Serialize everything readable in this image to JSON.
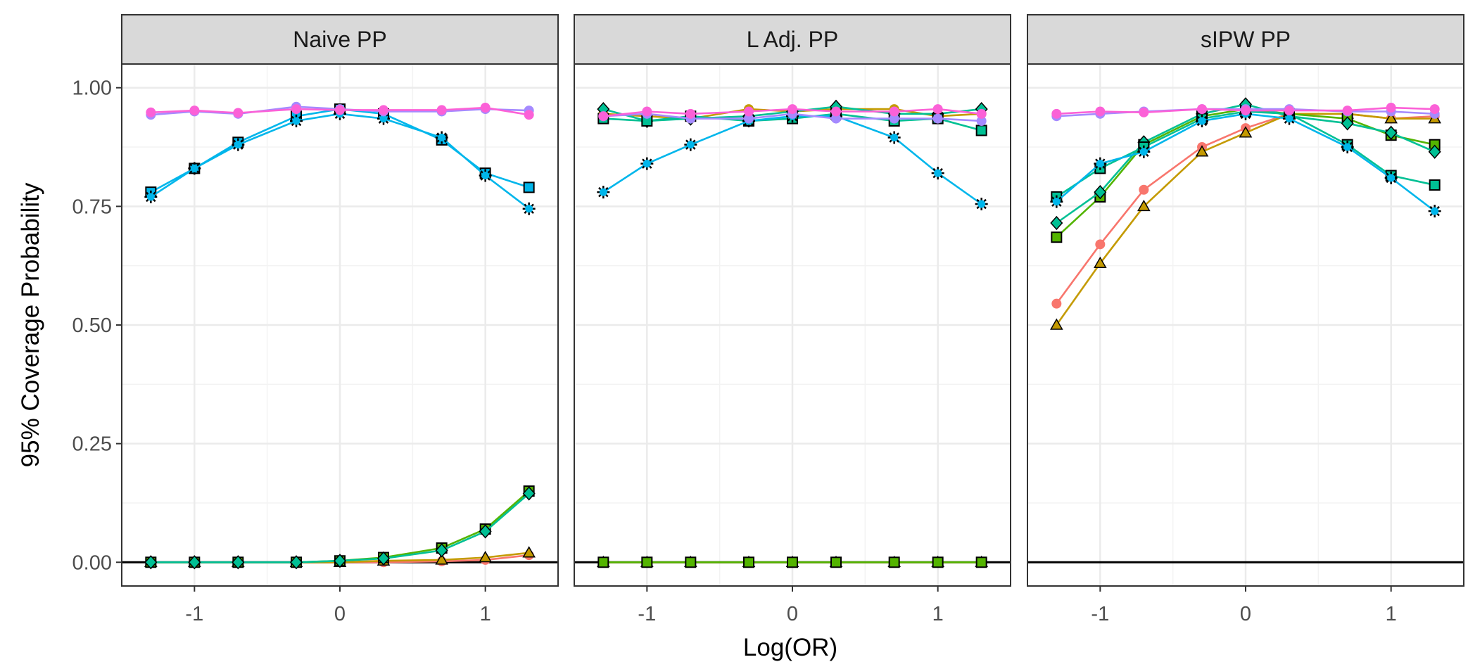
{
  "chart_data": {
    "type": "line",
    "ylabel": "95% Coverage Probability",
    "xlabel": "Log(OR)",
    "xlim": [
      -1.5,
      1.5
    ],
    "ylim": [
      -0.05,
      1.05
    ],
    "x_ticks": [
      -1,
      0,
      1
    ],
    "x_tick_labels": [
      "-1",
      "0",
      "1"
    ],
    "y_ticks": [
      0,
      0.25,
      0.5,
      0.75,
      1
    ],
    "y_tick_labels": [
      "0.00",
      "0.25",
      "0.50",
      "0.75",
      "1.00"
    ],
    "x": [
      -1.3,
      -1,
      -0.7,
      -0.3,
      0,
      0.3,
      0.7,
      1,
      1.3
    ],
    "grid": true,
    "reference_line_y": 0,
    "colors": {
      "series1": "#f8766d",
      "series2": "#c49a00",
      "series3": "#53b400",
      "series4": "#00c094",
      "series5": "#00b6eb",
      "series6": "#a58aff",
      "series7": "#fb61d7",
      "panel_strip": "#d9d9d9",
      "grid": "#ebebeb"
    },
    "panels": [
      {
        "title": "Naive PP",
        "series": [
          {
            "color": "#f8766d",
            "shape": "circle",
            "values": [
              0,
              0,
              0,
              0,
              0,
              0,
              0.002,
              0.005,
              0.015
            ]
          },
          {
            "color": "#c49a00",
            "shape": "triangle",
            "values": [
              0,
              0,
              0,
              0,
              0,
              0.003,
              0.005,
              0.01,
              0.02
            ]
          },
          {
            "color": "#53b400",
            "shape": "square",
            "values": [
              0,
              0,
              0,
              0,
              0.003,
              0.01,
              0.03,
              0.07,
              0.15
            ]
          },
          {
            "color": "#00c094",
            "shape": "diamond",
            "values": [
              0,
              0,
              0,
              0,
              0.003,
              0.008,
              0.025,
              0.065,
              0.145
            ]
          },
          {
            "color": "#00b6eb",
            "shape": "square",
            "values": [
              0.78,
              0.83,
              0.885,
              0.94,
              0.955,
              0.945,
              0.89,
              0.82,
              0.79
            ]
          },
          {
            "color": "#00b6eb",
            "shape": "star",
            "values": [
              0.77,
              0.83,
              0.88,
              0.93,
              0.945,
              0.935,
              0.895,
              0.815,
              0.745
            ]
          },
          {
            "color": "#a58aff",
            "shape": "circle",
            "values": [
              0.943,
              0.95,
              0.945,
              0.96,
              0.955,
              0.95,
              0.95,
              0.955,
              0.952
            ]
          },
          {
            "color": "#fb61d7",
            "shape": "circle",
            "values": [
              0.948,
              0.952,
              0.947,
              0.955,
              0.953,
              0.953,
              0.953,
              0.958,
              0.943
            ]
          }
        ]
      },
      {
        "title": "L Adj. PP",
        "series": [
          {
            "color": "#f8766d",
            "shape": "circle",
            "values": [
              0,
              0,
              0,
              0,
              0,
              0,
              0,
              0,
              0
            ]
          },
          {
            "color": "#c49a00",
            "shape": "triangle",
            "values": [
              0,
              0,
              0,
              0,
              0,
              0,
              0,
              0,
              0
            ]
          },
          {
            "color": "#53b400",
            "shape": "square",
            "values": [
              0,
              0,
              0,
              0,
              0,
              0,
              0,
              0,
              0
            ]
          },
          {
            "color": "#c49a00",
            "shape": "circle",
            "values": [
              0.945,
              0.94,
              0.935,
              0.955,
              0.95,
              0.955,
              0.955,
              0.94,
              0.945
            ]
          },
          {
            "color": "#00c094",
            "shape": "diamond",
            "values": [
              0.955,
              0.93,
              0.935,
              0.94,
              0.95,
              0.96,
              0.945,
              0.945,
              0.955
            ]
          },
          {
            "color": "#00c094",
            "shape": "square",
            "values": [
              0.935,
              0.93,
              0.94,
              0.93,
              0.935,
              0.945,
              0.93,
              0.935,
              0.91
            ]
          },
          {
            "color": "#00b6eb",
            "shape": "star",
            "values": [
              0.78,
              0.84,
              0.88,
              0.93,
              0.94,
              0.94,
              0.895,
              0.82,
              0.755
            ]
          },
          {
            "color": "#a58aff",
            "shape": "circle",
            "values": [
              0.94,
              0.945,
              0.935,
              0.935,
              0.945,
              0.935,
              0.935,
              0.935,
              0.93
            ]
          },
          {
            "color": "#fb61d7",
            "shape": "circle",
            "values": [
              0.94,
              0.95,
              0.945,
              0.95,
              0.955,
              0.95,
              0.95,
              0.955,
              0.945
            ]
          }
        ]
      },
      {
        "title": "sIPW PP",
        "series": [
          {
            "color": "#f8766d",
            "shape": "circle",
            "values": [
              0.545,
              0.67,
              0.785,
              0.875,
              0.915,
              0.945,
              0.945,
              0.935,
              0.94
            ]
          },
          {
            "color": "#c49a00",
            "shape": "triangle",
            "values": [
              0.5,
              0.63,
              0.75,
              0.865,
              0.905,
              0.945,
              0.945,
              0.935,
              0.935
            ]
          },
          {
            "color": "#53b400",
            "shape": "square",
            "values": [
              0.685,
              0.77,
              0.88,
              0.94,
              0.955,
              0.945,
              0.935,
              0.9,
              0.88
            ]
          },
          {
            "color": "#00c094",
            "shape": "diamond",
            "values": [
              0.715,
              0.78,
              0.885,
              0.945,
              0.965,
              0.94,
              0.925,
              0.905,
              0.865
            ]
          },
          {
            "color": "#00c094",
            "shape": "square",
            "values": [
              0.77,
              0.83,
              0.875,
              0.935,
              0.95,
              0.945,
              0.88,
              0.815,
              0.795
            ]
          },
          {
            "color": "#00b6eb",
            "shape": "star",
            "values": [
              0.76,
              0.84,
              0.865,
              0.93,
              0.945,
              0.935,
              0.875,
              0.81,
              0.74
            ]
          },
          {
            "color": "#a58aff",
            "shape": "circle",
            "values": [
              0.94,
              0.945,
              0.95,
              0.955,
              0.955,
              0.955,
              0.95,
              0.95,
              0.945
            ]
          },
          {
            "color": "#fb61d7",
            "shape": "circle",
            "values": [
              0.945,
              0.95,
              0.948,
              0.955,
              0.952,
              0.952,
              0.952,
              0.958,
              0.955
            ]
          }
        ]
      }
    ]
  }
}
